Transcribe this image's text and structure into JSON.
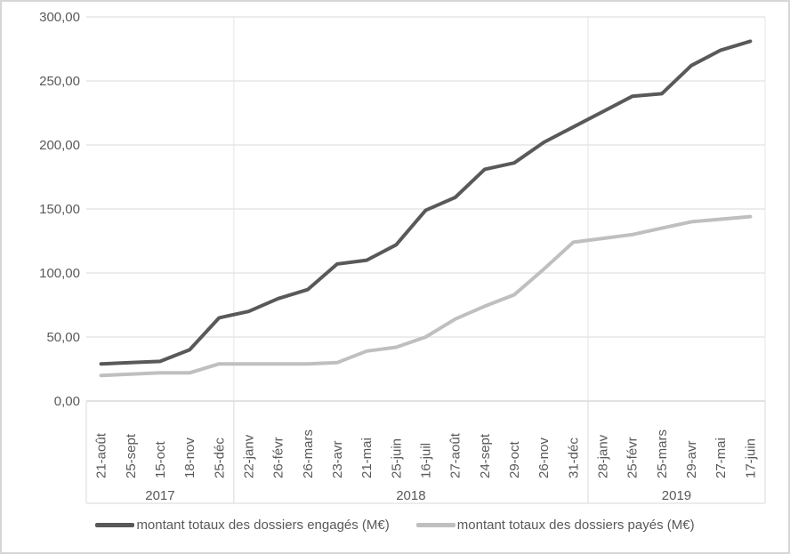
{
  "chart_data": {
    "type": "line",
    "title": "",
    "categories": [
      "21-août",
      "25-sept",
      "15-oct",
      "18-nov",
      "25-déc",
      "22-janv",
      "26-févr",
      "26-mars",
      "23-avr",
      "21-mai",
      "25-juin",
      "16-juil",
      "27-août",
      "24-sept",
      "29-oct",
      "26-nov",
      "31-déc",
      "28-janv",
      "25-févr",
      "25-mars",
      "29-avr",
      "27-mai",
      "17-juin"
    ],
    "year_groups": [
      {
        "label": "2017",
        "start": 0,
        "count": 5
      },
      {
        "label": "2018",
        "start": 5,
        "count": 12
      },
      {
        "label": "2019",
        "start": 17,
        "count": 6
      }
    ],
    "series": [
      {
        "name": "montant totaux des dossiers engagés (M€)",
        "color": "#595959",
        "values": [
          29,
          30,
          31,
          40,
          65,
          70,
          80,
          87,
          107,
          110,
          122,
          149,
          159,
          181,
          186,
          202,
          214,
          226,
          238,
          240,
          262,
          274,
          281
        ]
      },
      {
        "name": "montant totaux des dossiers payés (M€)",
        "color": "#bfbfbf",
        "values": [
          20,
          21,
          22,
          22,
          29,
          29,
          29,
          29,
          30,
          39,
          42,
          50,
          64,
          74,
          83,
          103,
          124,
          127,
          130,
          135,
          140,
          142,
          144
        ]
      }
    ],
    "ylim": [
      0,
      300
    ],
    "ytick_step": 50,
    "ytick_labels": [
      "0,00",
      "50,00",
      "100,00",
      "150,00",
      "200,00",
      "250,00",
      "300,00"
    ],
    "grid": true,
    "legend_position": "bottom"
  },
  "colors": {
    "background": "#ffffff",
    "border": "#d6d6d6",
    "gridline": "#d9d9d9",
    "axis_line": "#c6c6c6",
    "plot_group_divider": "#e4e4e4",
    "text": "#595959"
  }
}
